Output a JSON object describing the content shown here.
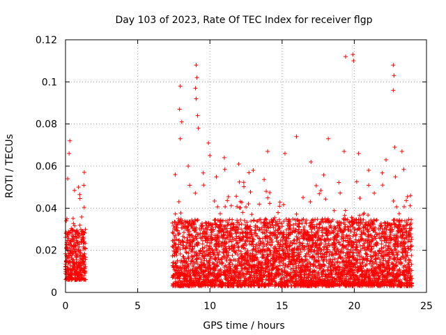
{
  "chart_data": {
    "type": "scatter",
    "title": "Day 103 of 2023, Rate Of TEC Index for receiver flgp",
    "xlabel": "GPS time / hours",
    "ylabel": "ROTI / TECUs",
    "xlim": [
      0,
      25
    ],
    "ylim": [
      0,
      0.12
    ],
    "grid": true,
    "marker": "+",
    "color": "#ff0000",
    "x_ticks": [
      0,
      5,
      10,
      15,
      20,
      25
    ],
    "x_tick_labels": [
      "0",
      "5",
      "10",
      "15",
      "20",
      "25"
    ],
    "y_ticks": [
      0,
      0.02,
      0.04,
      0.06,
      0.08,
      0.1,
      0.12
    ],
    "y_tick_labels": [
      "0",
      "0.02",
      "0.04",
      "0.06",
      "0.08",
      "0.1",
      "0.12"
    ],
    "series": [
      {
        "name": "ROTI",
        "segments": [
          {
            "x_start": 0.0,
            "x_end": 1.4,
            "step": 0.012,
            "typical_low": 0.006,
            "typical_high": 0.03
          },
          {
            "x_start": 7.4,
            "x_end": 24.0,
            "step": 0.012,
            "typical_low": 0.003,
            "typical_high": 0.035
          }
        ],
        "peaks": [
          {
            "x": 0.3,
            "y": 0.072
          },
          {
            "x": 0.25,
            "y": 0.066
          },
          {
            "x": 0.15,
            "y": 0.054
          },
          {
            "x": 1.3,
            "y": 0.057
          },
          {
            "x": 0.9,
            "y": 0.05
          },
          {
            "x": 7.6,
            "y": 0.056
          },
          {
            "x": 7.95,
            "y": 0.098
          },
          {
            "x": 7.9,
            "y": 0.087
          },
          {
            "x": 7.95,
            "y": 0.073
          },
          {
            "x": 8.05,
            "y": 0.081
          },
          {
            "x": 8.5,
            "y": 0.06
          },
          {
            "x": 9.05,
            "y": 0.108
          },
          {
            "x": 9.1,
            "y": 0.102
          },
          {
            "x": 9.0,
            "y": 0.097
          },
          {
            "x": 9.05,
            "y": 0.092
          },
          {
            "x": 9.15,
            "y": 0.084
          },
          {
            "x": 9.2,
            "y": 0.078
          },
          {
            "x": 9.9,
            "y": 0.071
          },
          {
            "x": 10.0,
            "y": 0.065
          },
          {
            "x": 11.0,
            "y": 0.064
          },
          {
            "x": 12.0,
            "y": 0.061
          },
          {
            "x": 13.0,
            "y": 0.058
          },
          {
            "x": 14.0,
            "y": 0.067
          },
          {
            "x": 15.2,
            "y": 0.066
          },
          {
            "x": 16.0,
            "y": 0.074
          },
          {
            "x": 17.0,
            "y": 0.062
          },
          {
            "x": 18.2,
            "y": 0.073
          },
          {
            "x": 19.3,
            "y": 0.067
          },
          {
            "x": 19.4,
            "y": 0.112
          },
          {
            "x": 19.9,
            "y": 0.113
          },
          {
            "x": 19.95,
            "y": 0.11
          },
          {
            "x": 20.3,
            "y": 0.066
          },
          {
            "x": 21.0,
            "y": 0.058
          },
          {
            "x": 22.2,
            "y": 0.063
          },
          {
            "x": 22.7,
            "y": 0.108
          },
          {
            "x": 22.75,
            "y": 0.103
          },
          {
            "x": 22.7,
            "y": 0.096
          },
          {
            "x": 22.8,
            "y": 0.069
          },
          {
            "x": 23.3,
            "y": 0.067
          },
          {
            "x": 23.9,
            "y": 0.046
          }
        ]
      }
    ]
  }
}
